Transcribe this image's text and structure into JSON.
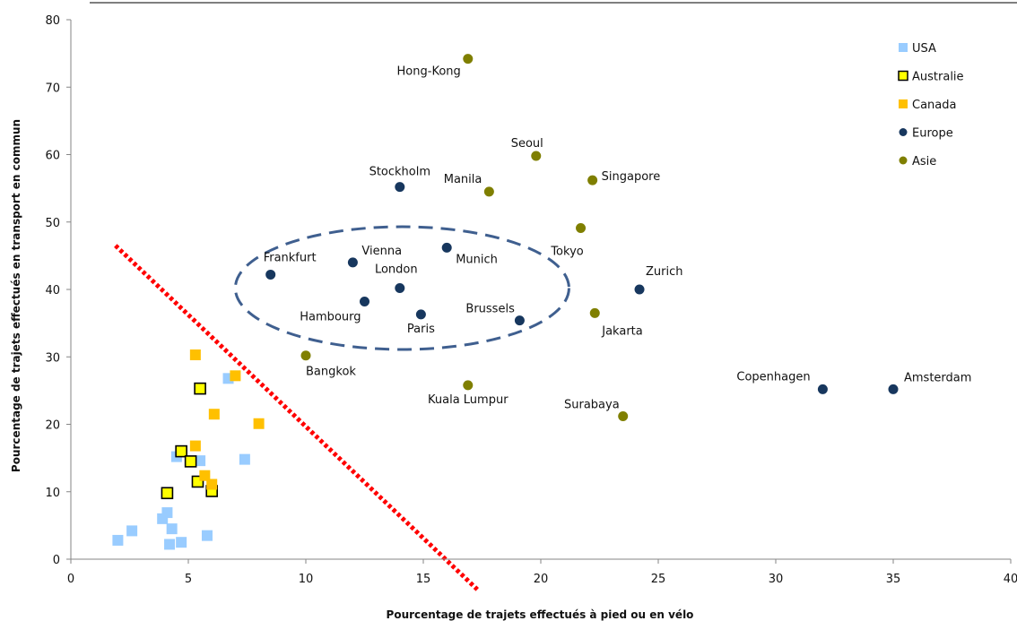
{
  "chart_data": {
    "type": "scatter",
    "title": "",
    "xlabel": "Pourcentage de trajets effectués à pied ou en vélo",
    "ylabel": "Pourcentage de trajets effectués en transport en commun",
    "xlim": [
      0,
      40
    ],
    "ylim": [
      0,
      80
    ],
    "xticks": [
      0,
      5,
      10,
      15,
      20,
      25,
      30,
      35,
      40
    ],
    "yticks": [
      0,
      10,
      20,
      30,
      40,
      50,
      60,
      70,
      80
    ],
    "grid": false,
    "legend_position": "top-right",
    "series": [
      {
        "name": "USA",
        "marker": "square",
        "color": "#99CCFF",
        "points": [
          {
            "x": 2.0,
            "y": 2.8
          },
          {
            "x": 2.6,
            "y": 4.2
          },
          {
            "x": 3.9,
            "y": 6.0
          },
          {
            "x": 4.1,
            "y": 6.9
          },
          {
            "x": 4.3,
            "y": 4.5
          },
          {
            "x": 4.2,
            "y": 2.2
          },
          {
            "x": 4.7,
            "y": 2.5
          },
          {
            "x": 5.8,
            "y": 3.5
          },
          {
            "x": 4.5,
            "y": 15.2
          },
          {
            "x": 5.5,
            "y": 14.6
          },
          {
            "x": 6.7,
            "y": 26.8
          },
          {
            "x": 7.4,
            "y": 14.8
          }
        ]
      },
      {
        "name": "Australie",
        "marker": "square-outline",
        "color": "#FFFF00",
        "points": [
          {
            "x": 4.1,
            "y": 9.8
          },
          {
            "x": 4.7,
            "y": 16.0
          },
          {
            "x": 5.1,
            "y": 14.5
          },
          {
            "x": 5.4,
            "y": 11.5
          },
          {
            "x": 5.5,
            "y": 25.3
          },
          {
            "x": 6.0,
            "y": 10.1
          }
        ]
      },
      {
        "name": "Canada",
        "marker": "square",
        "color": "#FFC000",
        "points": [
          {
            "x": 5.3,
            "y": 30.3
          },
          {
            "x": 5.3,
            "y": 16.8
          },
          {
            "x": 5.7,
            "y": 12.4
          },
          {
            "x": 6.0,
            "y": 11.1
          },
          {
            "x": 6.1,
            "y": 21.5
          },
          {
            "x": 7.0,
            "y": 27.2
          },
          {
            "x": 8.0,
            "y": 20.1
          }
        ]
      },
      {
        "name": "Europe",
        "marker": "circle",
        "color": "#17375E",
        "points": [
          {
            "x": 14.0,
            "y": 55.2,
            "label": "Stockholm"
          },
          {
            "x": 16.0,
            "y": 46.2,
            "label": "Munich"
          },
          {
            "x": 12.0,
            "y": 44.0,
            "label": "Vienna"
          },
          {
            "x": 8.5,
            "y": 42.2,
            "label": "Frankfurt"
          },
          {
            "x": 14.0,
            "y": 40.2,
            "label": "London"
          },
          {
            "x": 12.5,
            "y": 38.2,
            "label": "Hambourg"
          },
          {
            "x": 14.9,
            "y": 36.3,
            "label": "Paris"
          },
          {
            "x": 19.1,
            "y": 35.4,
            "label": "Brussels"
          },
          {
            "x": 24.2,
            "y": 40.0,
            "label": "Zurich"
          },
          {
            "x": 32.0,
            "y": 25.2,
            "label": "Copenhagen"
          },
          {
            "x": 35.0,
            "y": 25.2,
            "label": "Amsterdam"
          }
        ]
      },
      {
        "name": "Asie",
        "marker": "circle",
        "color": "#7F7F00",
        "points": [
          {
            "x": 16.9,
            "y": 74.2,
            "label": "Hong-Kong"
          },
          {
            "x": 19.8,
            "y": 59.8,
            "label": "Seoul"
          },
          {
            "x": 17.8,
            "y": 54.5,
            "label": "Manila"
          },
          {
            "x": 22.2,
            "y": 56.2,
            "label": "Singapore"
          },
          {
            "x": 21.7,
            "y": 49.1,
            "label": "Tokyo"
          },
          {
            "x": 22.3,
            "y": 36.5,
            "label": "Jakarta"
          },
          {
            "x": 10.0,
            "y": 30.2,
            "label": "Bangkok"
          },
          {
            "x": 16.9,
            "y": 25.8,
            "label": "Kuala Lumpur"
          },
          {
            "x": 23.5,
            "y": 21.2,
            "label": "Surabaya"
          }
        ]
      }
    ],
    "annotations": {
      "dashed_line": {
        "from": [
          1.9,
          46.5
        ],
        "to": [
          17.3,
          -4.5
        ],
        "color": "#FF0000"
      },
      "ellipse": {
        "center": [
          14.1,
          40.2
        ],
        "rx": 7.1,
        "ry": 9.1,
        "color": "#3F5F8F"
      }
    }
  }
}
